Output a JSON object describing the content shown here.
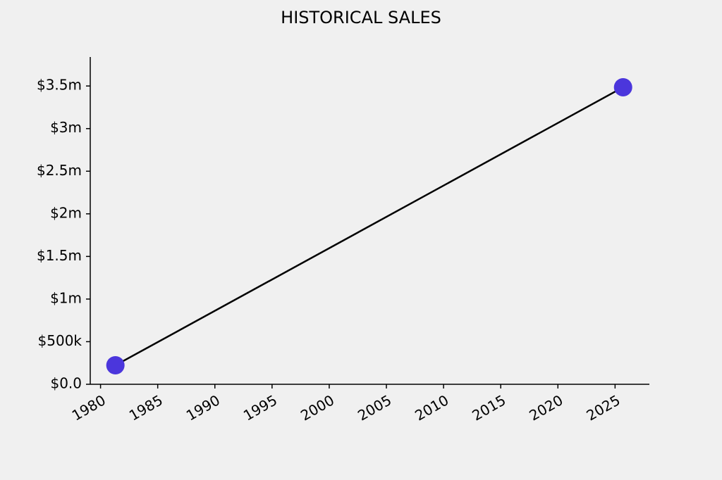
{
  "chart_data": {
    "type": "line",
    "title": "HISTORICAL SALES",
    "x": [
      1981.3,
      2025.7
    ],
    "series": [
      {
        "values": [
          223000,
          3485000
        ],
        "color": "#4b36dc",
        "line_color": "#000000"
      }
    ],
    "xlim": [
      1979.1,
      2028
    ],
    "xticks": [
      1980,
      1985,
      1990,
      1995,
      2000,
      2005,
      2010,
      2015,
      2020,
      2025
    ],
    "ylim": [
      0,
      3840000
    ],
    "yticks": [
      {
        "value": 0,
        "label": "$0.0"
      },
      {
        "value": 500000,
        "label": "$500k"
      },
      {
        "value": 1000000,
        "label": "$1m"
      },
      {
        "value": 1500000,
        "label": "$1.5m"
      },
      {
        "value": 2000000,
        "label": "$2m"
      },
      {
        "value": 2500000,
        "label": "$2.5m"
      },
      {
        "value": 3000000,
        "label": "$3m"
      },
      {
        "value": 3500000,
        "label": "$3.5m"
      }
    ],
    "grid": false
  }
}
